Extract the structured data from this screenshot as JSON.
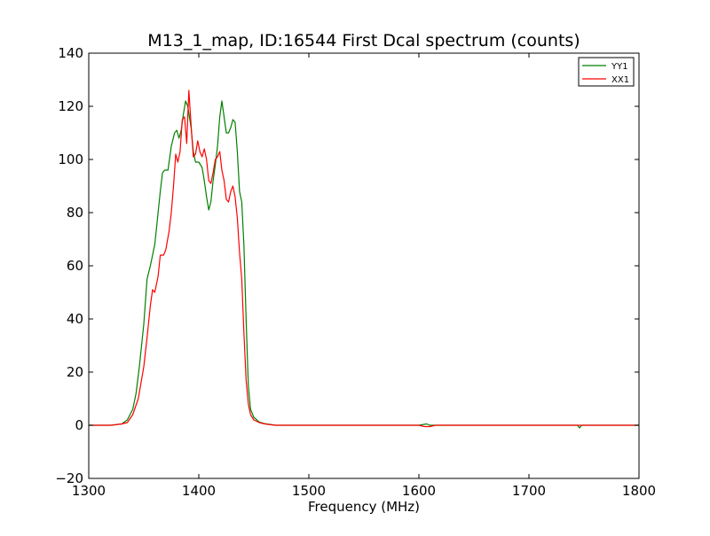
{
  "chart_data": {
    "type": "line",
    "title": "M13_1_map, ID:16544 First Dcal spectrum (counts)",
    "xlabel": "Frequency (MHz)",
    "ylabel": "",
    "xlim": [
      1300,
      1800
    ],
    "ylim": [
      -20,
      140
    ],
    "xticks": [
      "1300",
      "1400",
      "1500",
      "1600",
      "1700",
      "1800"
    ],
    "yticks": [
      "−20",
      "0",
      "20",
      "40",
      "60",
      "80",
      "100",
      "120",
      "140"
    ],
    "grid": false,
    "legend_position": "top-right",
    "series": [
      {
        "name": "YY1",
        "color": "#008000",
        "x": [
          1300,
          1320,
          1330,
          1335,
          1340,
          1343,
          1346,
          1350,
          1353,
          1356,
          1360,
          1362,
          1365,
          1367,
          1369,
          1372,
          1375,
          1378,
          1380,
          1382,
          1384,
          1386,
          1388,
          1390,
          1393,
          1395,
          1397,
          1400,
          1403,
          1405,
          1407,
          1409,
          1411,
          1413,
          1415,
          1417,
          1419,
          1421,
          1423,
          1425,
          1427,
          1429,
          1431,
          1433,
          1435,
          1437,
          1439,
          1441,
          1443,
          1445,
          1447,
          1450,
          1455,
          1460,
          1465,
          1470,
          1480,
          1500,
          1550,
          1600,
          1607,
          1610,
          1620,
          1650,
          1700,
          1744,
          1746,
          1748,
          1800
        ],
        "y": [
          0,
          0,
          0.5,
          2,
          6,
          12,
          22,
          38,
          55,
          60,
          68,
          76,
          88,
          95,
          96,
          96,
          105,
          110,
          111,
          108,
          111,
          117,
          122,
          120,
          112,
          103,
          99,
          99,
          97,
          92,
          86,
          81,
          84,
          92,
          98,
          105,
          116,
          122,
          116,
          110,
          110,
          112,
          115,
          114,
          103,
          88,
          84,
          68,
          40,
          15,
          6,
          3,
          1.2,
          0.6,
          0.3,
          0,
          0,
          0,
          0,
          0,
          0.5,
          0,
          0,
          0,
          0,
          0,
          -1,
          0,
          0
        ]
      },
      {
        "name": "XX1",
        "color": "#ff0000",
        "x": [
          1300,
          1320,
          1330,
          1335,
          1340,
          1345,
          1350,
          1353,
          1356,
          1358,
          1360,
          1363,
          1365,
          1368,
          1370,
          1373,
          1375,
          1377,
          1379,
          1381,
          1383,
          1385,
          1387,
          1389,
          1391,
          1393,
          1395,
          1397,
          1399,
          1401,
          1403,
          1405,
          1407,
          1409,
          1411,
          1413,
          1415,
          1417,
          1419,
          1421,
          1423,
          1425,
          1427,
          1429,
          1431,
          1433,
          1435,
          1437,
          1439,
          1441,
          1443,
          1445,
          1447,
          1450,
          1455,
          1460,
          1465,
          1470,
          1480,
          1500,
          1550,
          1600,
          1605,
          1610,
          1615,
          1650,
          1700,
          1800
        ],
        "y": [
          0,
          0,
          0.5,
          1,
          4,
          10,
          22,
          33,
          45,
          51,
          50,
          56,
          64,
          64,
          66,
          73,
          80,
          90,
          102,
          99,
          103,
          115,
          116,
          106,
          126,
          113,
          101,
          102,
          107,
          103,
          101,
          104,
          100,
          92,
          91,
          95,
          100,
          101,
          103,
          96,
          92,
          85,
          84,
          88,
          90,
          86,
          78,
          65,
          55,
          35,
          17,
          8,
          4,
          2,
          1,
          0.5,
          0.2,
          0,
          0,
          0,
          0,
          0,
          -0.5,
          -0.5,
          0,
          0,
          0,
          0
        ]
      }
    ]
  }
}
